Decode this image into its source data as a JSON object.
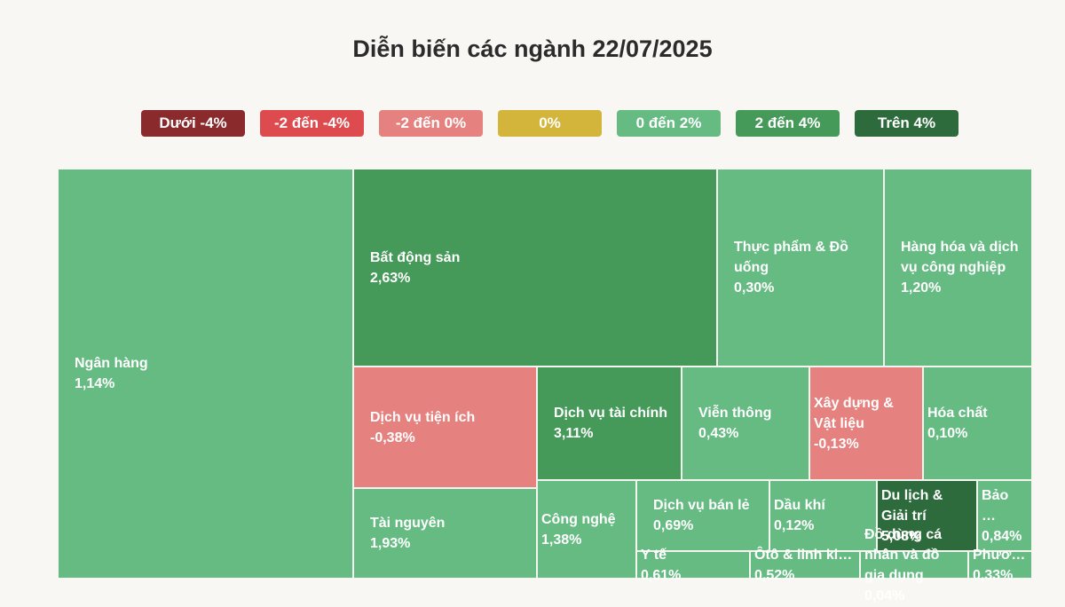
{
  "chart_data": {
    "type": "treemap",
    "title": "Diễn biến các ngành 22/07/2025",
    "legend": [
      {
        "label": "Dưới -4%",
        "color": "#8b2a2c"
      },
      {
        "label": "-2 đến -4%",
        "color": "#dd4b4e"
      },
      {
        "label": "-2 đến 0%",
        "color": "#e5817e"
      },
      {
        "label": "0%",
        "color": "#d4b53c"
      },
      {
        "label": "0 đến 2%",
        "color": "#66bb83"
      },
      {
        "label": "2 đến 4%",
        "color": "#459a59"
      },
      {
        "label": "Trên 4%",
        "color": "#2e6b3c"
      }
    ],
    "categories": [
      "Ngân hàng",
      "Bất động sản",
      "Thực phẩm & Đồ uống",
      "Hàng hóa và dịch vụ công nghiệp",
      "Dịch vụ tiện ích",
      "Dịch vụ tài chính",
      "Viễn thông",
      "Xây dựng & Vật liệu",
      "Hóa chất",
      "Tài nguyên",
      "Công nghệ",
      "Dịch vụ bán lẻ",
      "Dầu khí",
      "Du lịch & Giải trí",
      "Bảo …",
      "Y tế",
      "Ôtô & linh ki…",
      "Đồ dùng cá nhân và đồ gia dụng",
      "Phươ…"
    ],
    "values": [
      1.14,
      2.63,
      0.3,
      1.2,
      -0.38,
      3.11,
      0.43,
      -0.13,
      0.1,
      1.93,
      1.38,
      0.69,
      0.12,
      5.08,
      0.84,
      0.61,
      0.52,
      0.04,
      0.33
    ],
    "value_labels": [
      "1,14%",
      "2,63%",
      "0,30%",
      "1,20%",
      "-0,38%",
      "3,11%",
      "0,43%",
      "-0,13%",
      "0,10%",
      "1,93%",
      "1,38%",
      "0,69%",
      "0,12%",
      "5,08%",
      "0,84%",
      "0,61%",
      "0,52%",
      "0,04%",
      "0,33%"
    ],
    "colors": [
      "#66bb83",
      "#459a59",
      "#66bb83",
      "#66bb83",
      "#e5817e",
      "#459a59",
      "#66bb83",
      "#e5817e",
      "#66bb83",
      "#66bb83",
      "#66bb83",
      "#66bb83",
      "#66bb83",
      "#2e6b3c",
      "#66bb83",
      "#66bb83",
      "#66bb83",
      "#66bb83",
      "#66bb83"
    ]
  }
}
